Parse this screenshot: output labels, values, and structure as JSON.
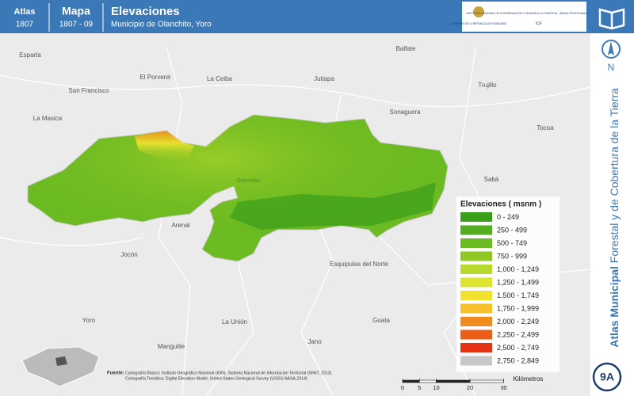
{
  "header": {
    "atlas": {
      "label": "Atlas",
      "code": "1807"
    },
    "mapa": {
      "label": "Mapa",
      "code": "1807 - 09"
    },
    "title": "Elevaciones",
    "subtitle": "Municipio de Olanchito, Yoro",
    "logos": {
      "government": "GOBIERNO DE LA REPÚBLICA DE HONDURAS",
      "institute": "INSTITUTO NACIONAL DE CONSERVACIÓN Y DESARROLLO FORESTAL, ÁREAS PROTEGIDAS Y VIDA SILVESTRE",
      "acronym": "ICF"
    }
  },
  "side": {
    "bold": "Atlas Municipal",
    "rest": "Forestal y de Cobertura de la Tierra",
    "north": "N",
    "badge": "9A"
  },
  "places": [
    "Esparta",
    "San Francisco",
    "El Porvenir",
    "La Ceiba",
    "Jutiapa",
    "Balfate",
    "Sonaguera",
    "Trujillo",
    "Tocoa",
    "La Masica",
    "Sabá",
    "Arenal",
    "Jocón",
    "Esquipulas del Norte",
    "Yoro",
    "La Unión",
    "Mangulile",
    "Jano",
    "Guata",
    "Olanchito"
  ],
  "legend": {
    "title": "Elevaciones ( msnm )",
    "items": [
      {
        "label": "0 - 249",
        "color": "#3a9e1a"
      },
      {
        "label": "250 - 499",
        "color": "#52ad1f"
      },
      {
        "label": "500 - 749",
        "color": "#6dbb22"
      },
      {
        "label": "750 - 999",
        "color": "#8fc825"
      },
      {
        "label": "1,000 - 1,249",
        "color": "#b7d92b"
      },
      {
        "label": "1,250 - 1,499",
        "color": "#dde42e"
      },
      {
        "label": "1,500 - 1,749",
        "color": "#f3e330"
      },
      {
        "label": "1,750 - 1,999",
        "color": "#f6c02a"
      },
      {
        "label": "2,000 - 2,249",
        "color": "#f08c1e"
      },
      {
        "label": "2,250 - 2,499",
        "color": "#ec5d17"
      },
      {
        "label": "2,500 - 2,749",
        "color": "#e53212"
      },
      {
        "label": "2,750 - 2,849",
        "color": "#c8c8c8"
      }
    ]
  },
  "source": {
    "label": "Fuente:",
    "line1": "Cartografía Básica: Instituto Geográfico Nacional (IGN), Sistema Nacional de Información Territorial (SINIT, 2013)",
    "line2": "Cartografía Temática: Digital Elevation Model, United States Geological Survey (USGS-NASA,2014)"
  },
  "scalebar": {
    "ticks": [
      0,
      5,
      10,
      20,
      30
    ],
    "unit": "Kilómetros"
  }
}
